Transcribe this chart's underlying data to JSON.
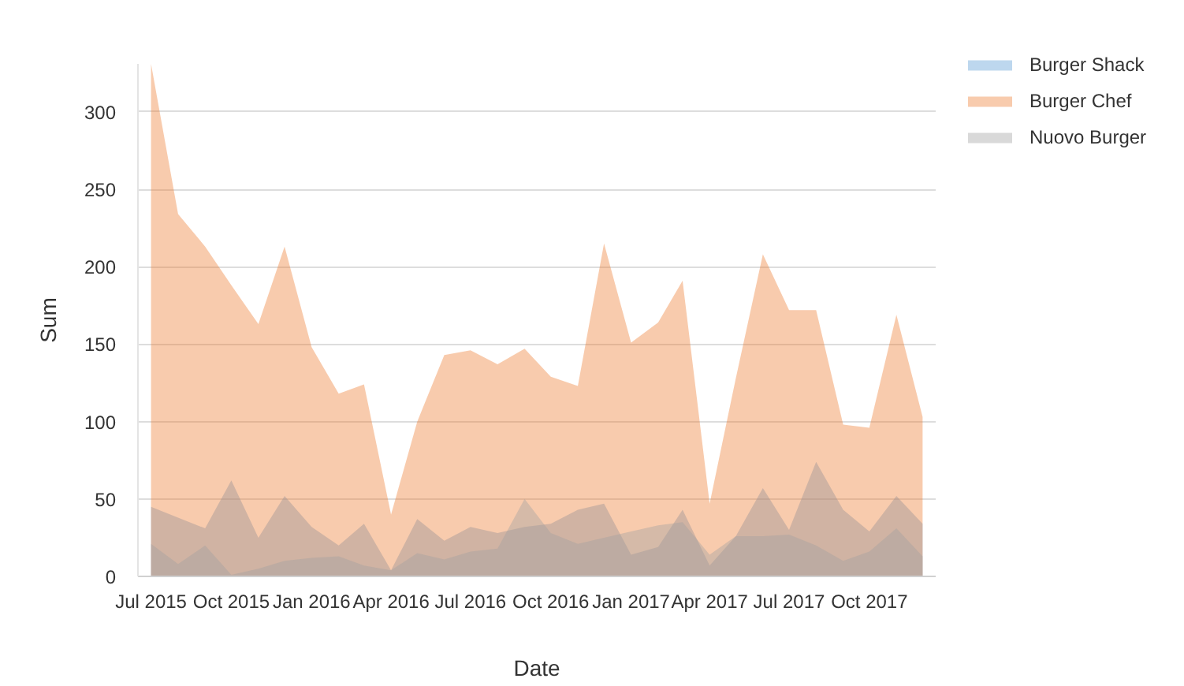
{
  "chart_data": {
    "type": "area",
    "xlabel": "Date",
    "ylabel": "Sum",
    "x": [
      "2015-07",
      "2015-08",
      "2015-09",
      "2015-10",
      "2015-11",
      "2015-12",
      "2016-01",
      "2016-02",
      "2016-03",
      "2016-04",
      "2016-05",
      "2016-06",
      "2016-07",
      "2016-08",
      "2016-09",
      "2016-10",
      "2016-11",
      "2016-12",
      "2017-01",
      "2017-02",
      "2017-03",
      "2017-04",
      "2017-05",
      "2017-06",
      "2017-07",
      "2017-08",
      "2017-09",
      "2017-10",
      "2017-11",
      "2017-12"
    ],
    "xlim": [
      "2015-06-16",
      "2017-12-16"
    ],
    "xticks": [
      {
        "value": "2015-07",
        "label": "Jul 2015"
      },
      {
        "value": "2015-10",
        "label": "Oct 2015"
      },
      {
        "value": "2016-01",
        "label": "Jan 2016"
      },
      {
        "value": "2016-04",
        "label": "Apr 2016"
      },
      {
        "value": "2016-07",
        "label": "Jul 2016"
      },
      {
        "value": "2016-10",
        "label": "Oct 2016"
      },
      {
        "value": "2017-01",
        "label": "Jan 2017"
      },
      {
        "value": "2017-04",
        "label": "Apr 2017"
      },
      {
        "value": "2017-07",
        "label": "Jul 2017"
      },
      {
        "value": "2017-10",
        "label": "Oct 2017"
      }
    ],
    "ylim": [
      0,
      331
    ],
    "yticks": [
      0,
      50,
      100,
      150,
      200,
      250,
      300
    ],
    "grid": "y",
    "legend": "top right",
    "series": [
      {
        "name": "Burger Shack",
        "color": "#bdd7ee",
        "values": [
          45,
          38,
          31,
          62,
          25,
          52,
          32,
          20,
          34,
          4,
          37,
          23,
          32,
          28,
          32,
          34,
          43,
          47,
          14,
          19,
          43,
          7,
          26,
          57,
          30,
          74,
          43,
          29,
          52,
          34
        ]
      },
      {
        "name": "Burger Chef",
        "color": "#f8cbad",
        "values": [
          331,
          234,
          213,
          188,
          163,
          213,
          148,
          118,
          124,
          40,
          100,
          143,
          146,
          137,
          147,
          129,
          123,
          215,
          151,
          164,
          191,
          47,
          128,
          208,
          172,
          172,
          98,
          96,
          169,
          103
        ]
      },
      {
        "name": "Nuovo Burger",
        "color": "#d9d9d9",
        "values": [
          21,
          8,
          20,
          1,
          5,
          10,
          12,
          13,
          7,
          4,
          15,
          11,
          16,
          18,
          50,
          28,
          21,
          25,
          29,
          33,
          35,
          14,
          26,
          26,
          27,
          20,
          10,
          16,
          31,
          13
        ]
      }
    ]
  }
}
